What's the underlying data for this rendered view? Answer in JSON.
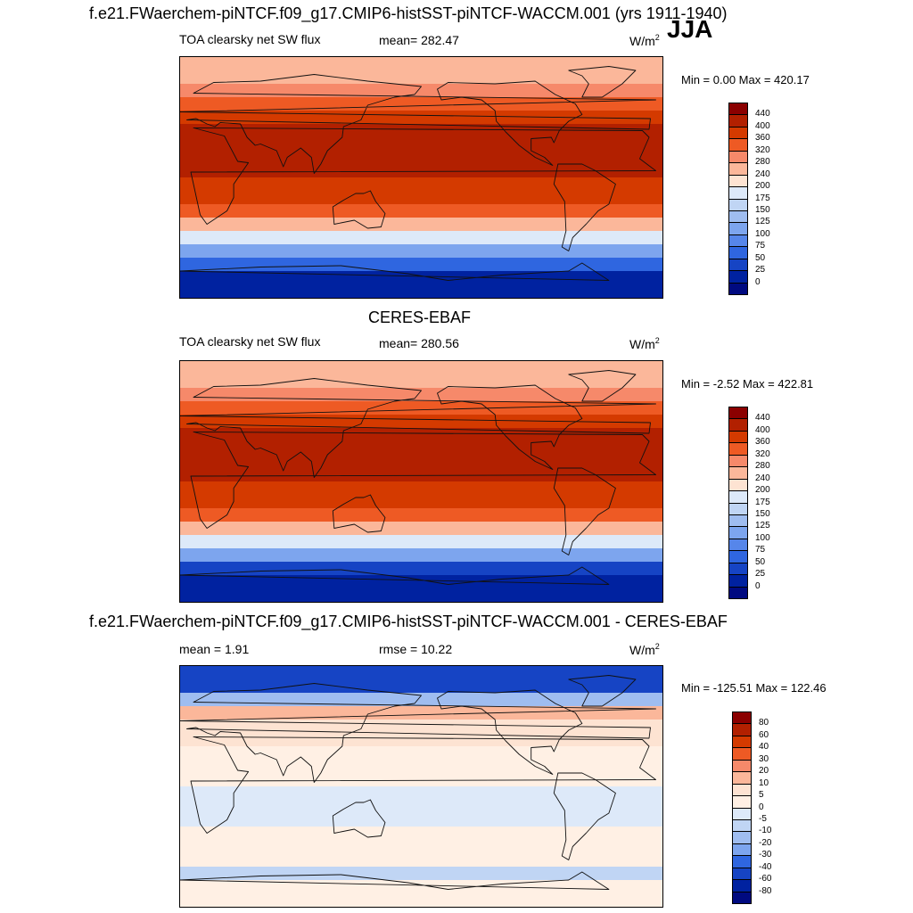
{
  "header": {
    "title": "f.e21.FWaerchem-piNTCF.f09_g17.CMIP6-histSST-piNTCF-WACCM.001 (yrs 1911-1940)",
    "season": "JJA"
  },
  "panels": [
    {
      "label": "TOA clearsky net SW flux",
      "stat": "mean= 282.47",
      "units_base": "W/m",
      "units_exp": "2",
      "minmax": "Min =   0.00 Max = 420.17"
    },
    {
      "title": "CERES-EBAF",
      "label": "TOA clearsky net SW flux",
      "stat": "mean= 280.56",
      "units_base": "W/m",
      "units_exp": "2",
      "minmax": "Min =  -2.52 Max = 422.81"
    },
    {
      "title": "f.e21.FWaerchem-piNTCF.f09_g17.CMIP6-histSST-piNTCF-WACCM.001 - CERES-EBAF",
      "label": "mean =   1.91",
      "stat": "rmse =  10.22",
      "units_base": "W/m",
      "units_exp": "2",
      "minmax": "Min = -125.51 Max = 122.46"
    }
  ],
  "chart_data": [
    {
      "type": "heatmap",
      "title": "TOA clearsky net SW flux",
      "units": "W/m2",
      "mean": 282.47,
      "min": 0.0,
      "max": 420.17,
      "levels": [
        "440",
        "400",
        "360",
        "320",
        "280",
        "240",
        "200",
        "175",
        "150",
        "125",
        "100",
        "75",
        "50",
        "25",
        "0"
      ],
      "colors": [
        "#8b0000",
        "#b22000",
        "#d43a00",
        "#ee5a24",
        "#f6896a",
        "#fbb79a",
        "#fde3d2",
        "#dde9f9",
        "#c0d5f4",
        "#9fbdf0",
        "#7da5ee",
        "#5686ea",
        "#2f66e0",
        "#1644c4",
        "#0022a0",
        "#000a80"
      ],
      "zonal_profile": {
        "lat": [
          75,
          65,
          55,
          45,
          35,
          25,
          15,
          5,
          -5,
          -15,
          -25,
          -35,
          -45,
          -55,
          -65,
          -75
        ],
        "value": [
          250,
          290,
          340,
          380,
          400,
          415,
          410,
          400,
          385,
          360,
          320,
          260,
          190,
          110,
          50,
          15
        ]
      }
    },
    {
      "type": "heatmap",
      "title": "CERES-EBAF",
      "subtitle": "TOA clearsky net SW flux",
      "units": "W/m2",
      "mean": 280.56,
      "min": -2.52,
      "max": 422.81,
      "levels": [
        "440",
        "400",
        "360",
        "320",
        "280",
        "240",
        "200",
        "175",
        "150",
        "125",
        "100",
        "75",
        "50",
        "25",
        "0"
      ],
      "colors": [
        "#8b0000",
        "#b22000",
        "#d43a00",
        "#ee5a24",
        "#f6896a",
        "#fbb79a",
        "#fde3d2",
        "#dde9f9",
        "#c0d5f4",
        "#9fbdf0",
        "#7da5ee",
        "#5686ea",
        "#2f66e0",
        "#1644c4",
        "#0022a0",
        "#000a80"
      ],
      "zonal_profile": {
        "lat": [
          75,
          65,
          55,
          45,
          35,
          25,
          15,
          5,
          -5,
          -15,
          -25,
          -35,
          -45,
          -55,
          -65,
          -75
        ],
        "value": [
          245,
          285,
          335,
          378,
          400,
          415,
          410,
          400,
          385,
          360,
          320,
          260,
          190,
          108,
          48,
          12
        ]
      }
    },
    {
      "type": "heatmap",
      "title": "f.e21.FWaerchem-piNTCF.f09_g17.CMIP6-histSST-piNTCF-WACCM.001 - CERES-EBAF",
      "units": "W/m2",
      "mean": 1.91,
      "rmse": 10.22,
      "min": -125.51,
      "max": 122.46,
      "levels": [
        "80",
        "60",
        "40",
        "30",
        "20",
        "10",
        "5",
        "0",
        "-5",
        "-10",
        "-20",
        "-30",
        "-40",
        "-60",
        "-80"
      ],
      "colors": [
        "#8b0000",
        "#b22000",
        "#d43a00",
        "#ee5a24",
        "#f6896a",
        "#fbb79a",
        "#fde3d2",
        "#fff0e4",
        "#dde9f9",
        "#c0d5f4",
        "#9fbdf0",
        "#7da5ee",
        "#2f66e0",
        "#1644c4",
        "#0022a0",
        "#000a80"
      ],
      "zonal_profile": {
        "lat": [
          75,
          65,
          55,
          45,
          35,
          25,
          15,
          5,
          -5,
          -15,
          -25,
          -35,
          -45,
          -55,
          -65,
          -75
        ],
        "value": [
          -45,
          -15,
          10,
          8,
          6,
          3,
          2,
          1,
          -1,
          -2,
          -1,
          2,
          3,
          2,
          -6,
          1
        ]
      }
    }
  ]
}
